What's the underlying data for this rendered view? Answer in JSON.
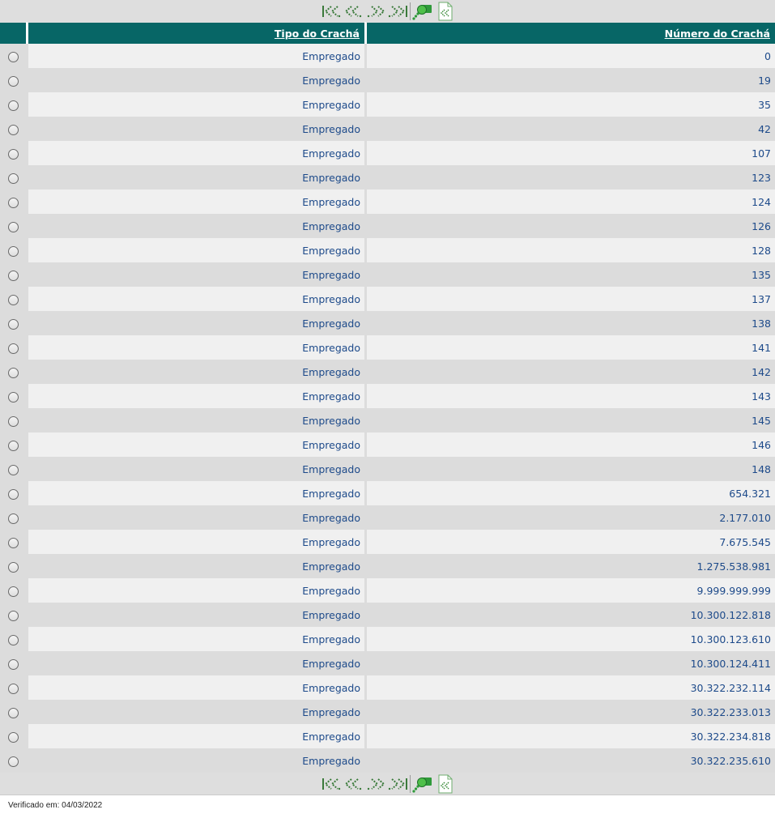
{
  "pager": {
    "icons": [
      "first-page-icon",
      "previous-page-icon",
      "next-page-icon",
      "last-page-icon",
      "search-icon",
      "export-document-icon"
    ]
  },
  "table": {
    "headers": {
      "tipo": "Tipo do Crachá",
      "numero": "Número do Crachá"
    },
    "rows": [
      {
        "tipo": "Empregado",
        "numero": "0"
      },
      {
        "tipo": "Empregado",
        "numero": "19"
      },
      {
        "tipo": "Empregado",
        "numero": "35"
      },
      {
        "tipo": "Empregado",
        "numero": "42"
      },
      {
        "tipo": "Empregado",
        "numero": "107"
      },
      {
        "tipo": "Empregado",
        "numero": "123"
      },
      {
        "tipo": "Empregado",
        "numero": "124"
      },
      {
        "tipo": "Empregado",
        "numero": "126"
      },
      {
        "tipo": "Empregado",
        "numero": "128"
      },
      {
        "tipo": "Empregado",
        "numero": "135"
      },
      {
        "tipo": "Empregado",
        "numero": "137"
      },
      {
        "tipo": "Empregado",
        "numero": "138"
      },
      {
        "tipo": "Empregado",
        "numero": "141"
      },
      {
        "tipo": "Empregado",
        "numero": "142"
      },
      {
        "tipo": "Empregado",
        "numero": "143"
      },
      {
        "tipo": "Empregado",
        "numero": "145"
      },
      {
        "tipo": "Empregado",
        "numero": "146"
      },
      {
        "tipo": "Empregado",
        "numero": "148"
      },
      {
        "tipo": "Empregado",
        "numero": "654.321"
      },
      {
        "tipo": "Empregado",
        "numero": "2.177.010"
      },
      {
        "tipo": "Empregado",
        "numero": "7.675.545"
      },
      {
        "tipo": "Empregado",
        "numero": "1.275.538.981"
      },
      {
        "tipo": "Empregado",
        "numero": "9.999.999.999"
      },
      {
        "tipo": "Empregado",
        "numero": "10.300.122.818"
      },
      {
        "tipo": "Empregado",
        "numero": "10.300.123.610"
      },
      {
        "tipo": "Empregado",
        "numero": "10.300.124.411"
      },
      {
        "tipo": "Empregado",
        "numero": "30.322.232.114"
      },
      {
        "tipo": "Empregado",
        "numero": "30.322.233.013"
      },
      {
        "tipo": "Empregado",
        "numero": "30.322.234.818"
      },
      {
        "tipo": "Empregado",
        "numero": "30.322.235.610"
      }
    ]
  },
  "footer": {
    "verified": "Verificado em: 04/03/2022"
  },
  "colors": {
    "header_bg": "#076666",
    "link_text": "#1d4a8a",
    "row_light": "#f0f0f0",
    "row_dark": "#dcdcdc"
  }
}
